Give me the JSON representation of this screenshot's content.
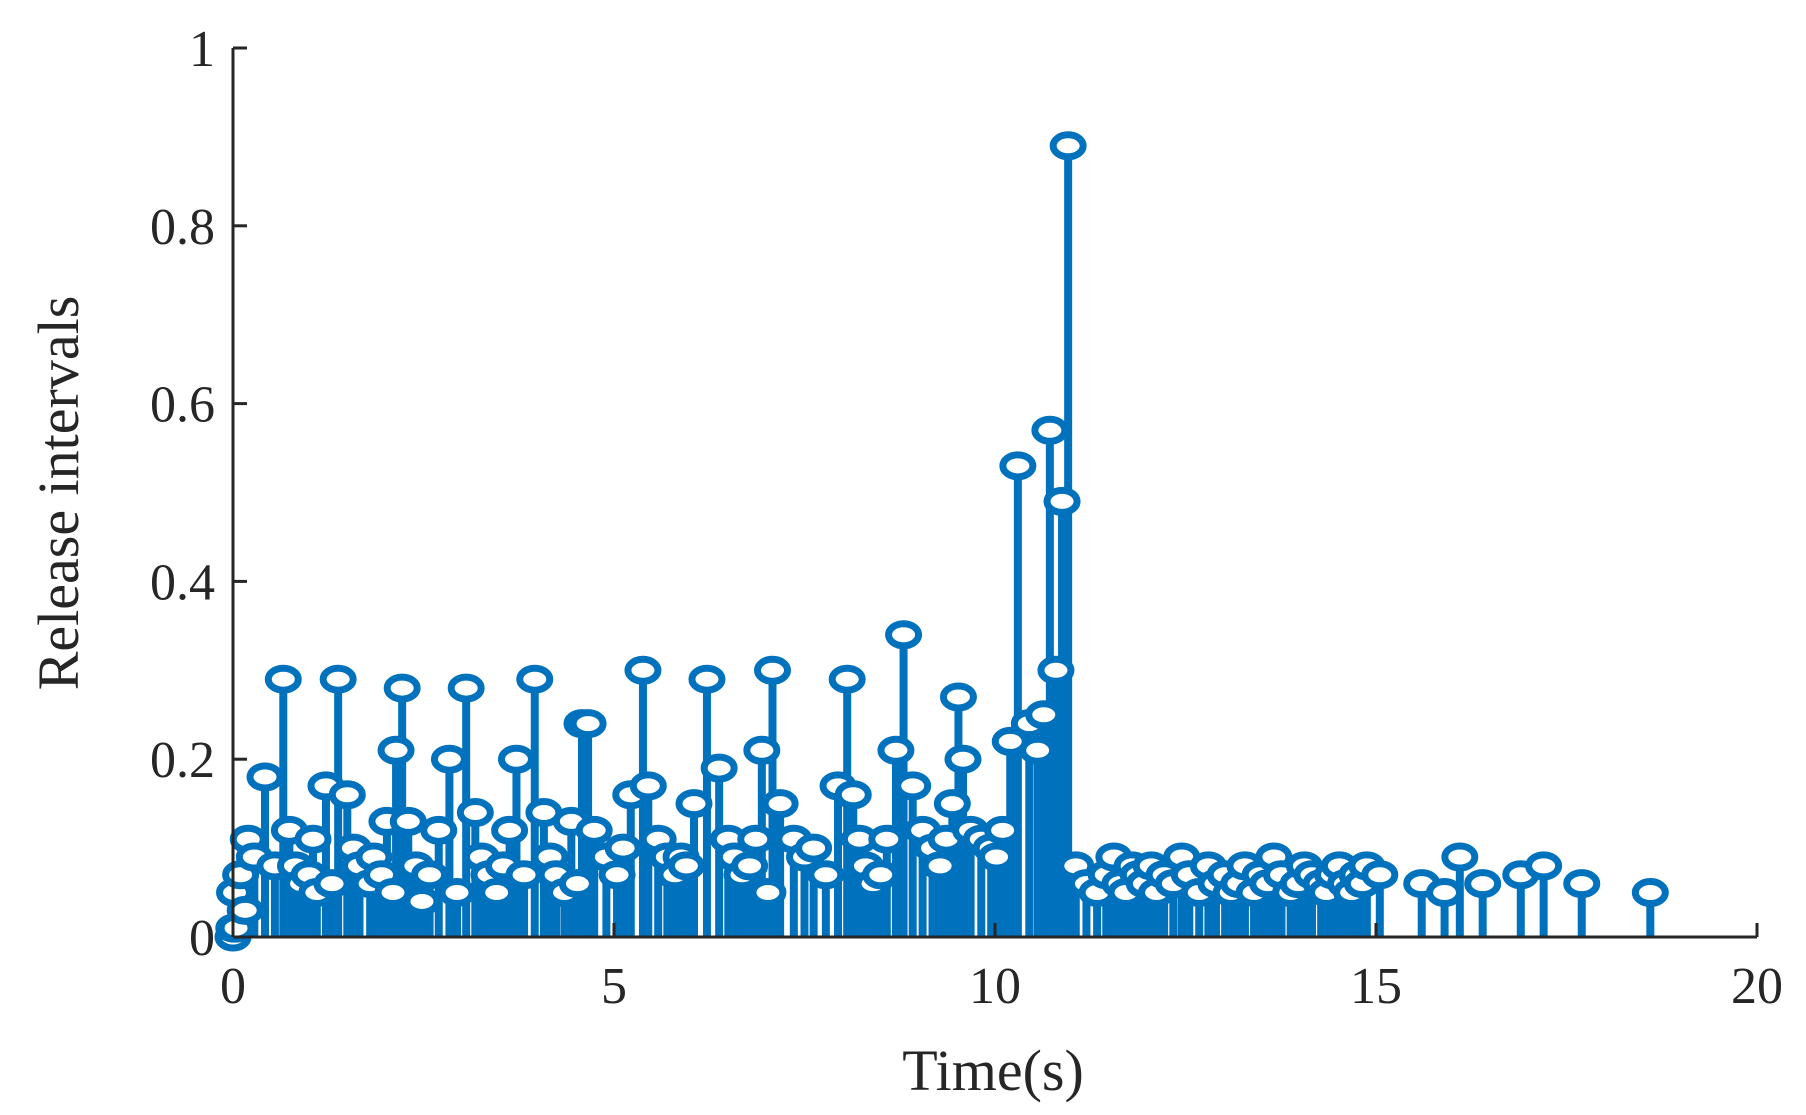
{
  "chart_data": {
    "type": "stem",
    "xlabel": "Time(s)",
    "ylabel": "Release intervals",
    "xlim": [
      0,
      20
    ],
    "ylim": [
      0,
      1
    ],
    "xticks": [
      0,
      5,
      10,
      15,
      20
    ],
    "yticks": [
      0,
      0.2,
      0.4,
      0.6,
      0.8,
      1
    ],
    "xtick_labels": [
      "0",
      "5",
      "10",
      "15",
      "20"
    ],
    "ytick_labels": [
      "0",
      "0.2",
      "0.4",
      "0.6",
      "0.8",
      "1"
    ],
    "grid": false,
    "color": "#0072BD",
    "series": [
      {
        "x": [
          0.0,
          0.01,
          0.02,
          0.04,
          0.1,
          0.16,
          0.2,
          0.28,
          0.42,
          0.55,
          0.66,
          0.74,
          0.82,
          0.9,
          1.0,
          1.05,
          1.1,
          1.22,
          1.3,
          1.38,
          1.5,
          1.58,
          1.66,
          1.8,
          1.85,
          1.95,
          2.02,
          2.1,
          2.14,
          2.22,
          2.3,
          2.4,
          2.48,
          2.58,
          2.7,
          2.84,
          2.94,
          3.06,
          3.18,
          3.26,
          3.36,
          3.46,
          3.55,
          3.63,
          3.72,
          3.82,
          3.96,
          4.08,
          4.16,
          4.24,
          4.35,
          4.44,
          4.52,
          4.58,
          4.66,
          4.74,
          4.9,
          5.04,
          5.12,
          5.22,
          5.38,
          5.45,
          5.58,
          5.7,
          5.8,
          5.88,
          5.95,
          6.05,
          6.22,
          6.38,
          6.5,
          6.58,
          6.68,
          6.78,
          6.86,
          6.94,
          7.02,
          7.08,
          7.18,
          7.36,
          7.5,
          7.62,
          7.78,
          7.94,
          8.06,
          8.14,
          8.22,
          8.3,
          8.4,
          8.5,
          8.58,
          8.7,
          8.8,
          8.92,
          9.05,
          9.18,
          9.28,
          9.36,
          9.44,
          9.52,
          9.58,
          9.68,
          9.82,
          9.95,
          10.02,
          10.1,
          10.2,
          10.3,
          10.45,
          10.56,
          10.64,
          10.72,
          10.8,
          10.88,
          10.96,
          11.06,
          11.2,
          11.34,
          11.46,
          11.56,
          11.64,
          11.72,
          11.8,
          11.88,
          11.96,
          12.05,
          12.12,
          12.22,
          12.34,
          12.45,
          12.55,
          12.68,
          12.8,
          12.9,
          13.02,
          13.1,
          13.2,
          13.28,
          13.4,
          13.48,
          13.58,
          13.66,
          13.76,
          13.88,
          13.98,
          14.06,
          14.16,
          14.28,
          14.35,
          14.43,
          14.52,
          14.6,
          14.68,
          14.75,
          14.82,
          14.88,
          15.05,
          15.6,
          15.9,
          16.1,
          16.4,
          16.9,
          17.2,
          17.7,
          18.6
        ],
        "y": [
          0.0,
          0.01,
          0.05,
          0.01,
          0.07,
          0.03,
          0.11,
          0.09,
          0.18,
          0.08,
          0.29,
          0.12,
          0.08,
          0.06,
          0.07,
          0.11,
          0.05,
          0.17,
          0.06,
          0.29,
          0.16,
          0.1,
          0.08,
          0.06,
          0.09,
          0.07,
          0.13,
          0.05,
          0.21,
          0.28,
          0.13,
          0.08,
          0.04,
          0.07,
          0.12,
          0.2,
          0.05,
          0.28,
          0.14,
          0.09,
          0.07,
          0.05,
          0.08,
          0.12,
          0.2,
          0.07,
          0.29,
          0.14,
          0.09,
          0.07,
          0.05,
          0.13,
          0.06,
          0.24,
          0.24,
          0.12,
          0.09,
          0.07,
          0.1,
          0.16,
          0.3,
          0.17,
          0.11,
          0.09,
          0.07,
          0.09,
          0.08,
          0.15,
          0.29,
          0.19,
          0.11,
          0.09,
          0.07,
          0.08,
          0.11,
          0.21,
          0.05,
          0.3,
          0.15,
          0.11,
          0.09,
          0.1,
          0.07,
          0.17,
          0.29,
          0.16,
          0.11,
          0.08,
          0.06,
          0.07,
          0.11,
          0.21,
          0.34,
          0.17,
          0.12,
          0.1,
          0.08,
          0.11,
          0.15,
          0.27,
          0.2,
          0.12,
          0.11,
          0.1,
          0.09,
          0.12,
          0.22,
          0.53,
          0.24,
          0.21,
          0.25,
          0.57,
          0.3,
          0.49,
          0.89,
          0.08,
          0.06,
          0.05,
          0.07,
          0.09,
          0.06,
          0.05,
          0.08,
          0.07,
          0.06,
          0.08,
          0.05,
          0.07,
          0.06,
          0.09,
          0.07,
          0.05,
          0.08,
          0.06,
          0.07,
          0.05,
          0.06,
          0.08,
          0.05,
          0.07,
          0.06,
          0.09,
          0.07,
          0.05,
          0.06,
          0.08,
          0.07,
          0.06,
          0.05,
          0.07,
          0.08,
          0.06,
          0.05,
          0.07,
          0.06,
          0.08,
          0.07,
          0.06,
          0.05,
          0.09,
          0.06,
          0.07,
          0.08,
          0.06,
          0.05
        ]
      }
    ]
  }
}
